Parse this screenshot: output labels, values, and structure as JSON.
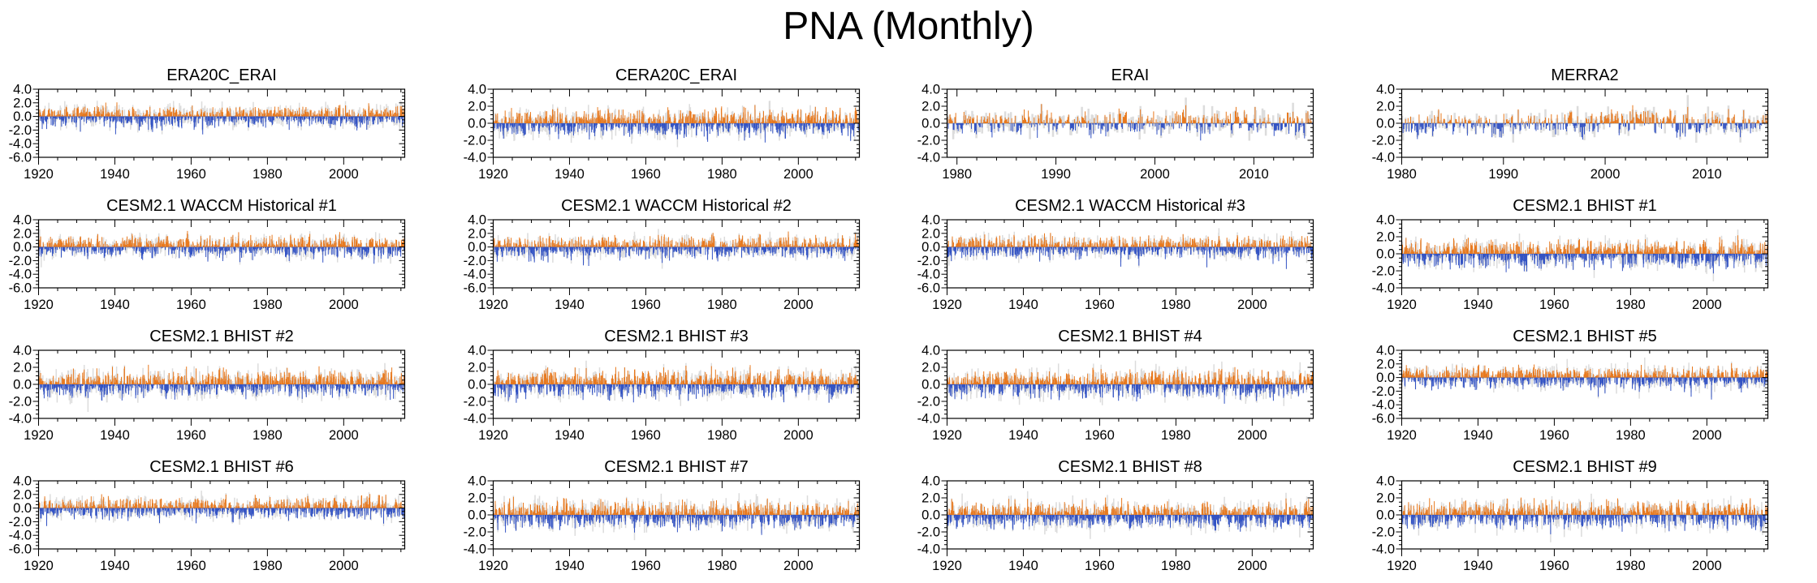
{
  "title": "PNA (Monthly)",
  "layout": {
    "rows": 4,
    "cols": 4,
    "grid_on": false,
    "legend": "none"
  },
  "colors": {
    "positive": "#e8791e",
    "negative": "#3353c4",
    "shadow": "#dcdcdc",
    "zero_line": "#9a9a9a",
    "axis": "#000000",
    "background": "#ffffff"
  },
  "series_legend": [
    {
      "name": "positive-anomaly-bars",
      "color_key": "positive"
    },
    {
      "name": "negative-anomaly-bars",
      "color_key": "negative"
    },
    {
      "name": "background-shadow-bars",
      "color_key": "shadow"
    }
  ],
  "chart_data": [
    {
      "type": "bar",
      "title": "ERA20C_ERAI",
      "xlim": [
        1920,
        2016
      ],
      "xticks": [
        1920,
        1940,
        1960,
        1980,
        2000
      ],
      "xtick_labels": [
        "1920",
        "1940",
        "1960",
        "1980",
        "2000"
      ],
      "xminor_step": 5,
      "ylim": [
        -6,
        4
      ],
      "yticks": [
        4,
        2,
        0,
        -2,
        -4,
        -6
      ],
      "ytick_labels": [
        "4.0",
        "2.0",
        "0.0",
        "-2.0",
        "-4.0",
        "-6.0"
      ],
      "yminor_step": 0.5,
      "seed": 3
    },
    {
      "type": "bar",
      "title": "CERA20C_ERAI",
      "xlim": [
        1920,
        2016
      ],
      "xticks": [
        1920,
        1940,
        1960,
        1980,
        2000
      ],
      "xtick_labels": [
        "1920",
        "1940",
        "1960",
        "1980",
        "2000"
      ],
      "xminor_step": 5,
      "ylim": [
        -4,
        4
      ],
      "yticks": [
        4,
        2,
        0,
        -2,
        -4
      ],
      "ytick_labels": [
        "4.0",
        "2.0",
        "0.0",
        "-2.0",
        "-4.0"
      ],
      "yminor_step": 0.5,
      "seed": 7
    },
    {
      "type": "bar",
      "title": "ERAI",
      "xlim": [
        1979,
        2016
      ],
      "xticks": [
        1980,
        1990,
        2000,
        2010
      ],
      "xtick_labels": [
        "1980",
        "1990",
        "2000",
        "2010"
      ],
      "xminor_step": 2,
      "ylim": [
        -4,
        4
      ],
      "yticks": [
        4,
        2,
        0,
        -2,
        -4
      ],
      "ytick_labels": [
        "4.0",
        "2.0",
        "0.0",
        "-2.0",
        "-4.0"
      ],
      "yminor_step": 0.5,
      "seed": 11
    },
    {
      "type": "bar",
      "title": "MERRA2",
      "xlim": [
        1980,
        2016
      ],
      "xticks": [
        1980,
        1990,
        2000,
        2010
      ],
      "xtick_labels": [
        "1980",
        "1990",
        "2000",
        "2010"
      ],
      "xminor_step": 2,
      "ylim": [
        -4,
        4
      ],
      "yticks": [
        4,
        2,
        0,
        -2,
        -4
      ],
      "ytick_labels": [
        "4.0",
        "2.0",
        "0.0",
        "-2.0",
        "-4.0"
      ],
      "yminor_step": 0.5,
      "seed": 15
    },
    {
      "type": "bar",
      "title": "CESM2.1 WACCM Historical #1",
      "xlim": [
        1920,
        2016
      ],
      "xticks": [
        1920,
        1940,
        1960,
        1980,
        2000
      ],
      "xtick_labels": [
        "1920",
        "1940",
        "1960",
        "1980",
        "2000"
      ],
      "xminor_step": 5,
      "ylim": [
        -6,
        4
      ],
      "yticks": [
        4,
        2,
        0,
        -2,
        -4,
        -6
      ],
      "ytick_labels": [
        "4.0",
        "2.0",
        "0.0",
        "-2.0",
        "-4.0",
        "-6.0"
      ],
      "yminor_step": 0.5,
      "seed": 21
    },
    {
      "type": "bar",
      "title": "CESM2.1 WACCM Historical #2",
      "xlim": [
        1920,
        2016
      ],
      "xticks": [
        1920,
        1940,
        1960,
        1980,
        2000
      ],
      "xtick_labels": [
        "1920",
        "1940",
        "1960",
        "1980",
        "2000"
      ],
      "xminor_step": 5,
      "ylim": [
        -6,
        4
      ],
      "yticks": [
        4,
        2,
        0,
        -2,
        -4,
        -6
      ],
      "ytick_labels": [
        "4.0",
        "2.0",
        "0.0",
        "-2.0",
        "-4.0",
        "-6.0"
      ],
      "yminor_step": 0.5,
      "seed": 25
    },
    {
      "type": "bar",
      "title": "CESM2.1 WACCM Historical #3",
      "xlim": [
        1920,
        2016
      ],
      "xticks": [
        1920,
        1940,
        1960,
        1980,
        2000
      ],
      "xtick_labels": [
        "1920",
        "1940",
        "1960",
        "1980",
        "2000"
      ],
      "xminor_step": 5,
      "ylim": [
        -6,
        4
      ],
      "yticks": [
        4,
        2,
        0,
        -2,
        -4,
        -6
      ],
      "ytick_labels": [
        "4.0",
        "2.0",
        "0.0",
        "-2.0",
        "-4.0",
        "-6.0"
      ],
      "yminor_step": 0.5,
      "seed": 29
    },
    {
      "type": "bar",
      "title": "CESM2.1 BHIST #1",
      "xlim": [
        1920,
        2016
      ],
      "xticks": [
        1920,
        1940,
        1960,
        1980,
        2000
      ],
      "xtick_labels": [
        "1920",
        "1940",
        "1960",
        "1980",
        "2000"
      ],
      "xminor_step": 5,
      "ylim": [
        -4,
        4
      ],
      "yticks": [
        4,
        2,
        0,
        -2,
        -4
      ],
      "ytick_labels": [
        "4.0",
        "2.0",
        "0.0",
        "-2.0",
        "-4.0"
      ],
      "yminor_step": 0.5,
      "seed": 33
    },
    {
      "type": "bar",
      "title": "CESM2.1 BHIST #2",
      "xlim": [
        1920,
        2016
      ],
      "xticks": [
        1920,
        1940,
        1960,
        1980,
        2000
      ],
      "xtick_labels": [
        "1920",
        "1940",
        "1960",
        "1980",
        "2000"
      ],
      "xminor_step": 5,
      "ylim": [
        -4,
        4
      ],
      "yticks": [
        4,
        2,
        0,
        -2,
        -4
      ],
      "ytick_labels": [
        "4.0",
        "2.0",
        "0.0",
        "-2.0",
        "-4.0"
      ],
      "yminor_step": 0.5,
      "seed": 41
    },
    {
      "type": "bar",
      "title": "CESM2.1 BHIST #3",
      "xlim": [
        1920,
        2016
      ],
      "xticks": [
        1920,
        1940,
        1960,
        1980,
        2000
      ],
      "xtick_labels": [
        "1920",
        "1940",
        "1960",
        "1980",
        "2000"
      ],
      "xminor_step": 5,
      "ylim": [
        -4,
        4
      ],
      "yticks": [
        4,
        2,
        0,
        -2,
        -4
      ],
      "ytick_labels": [
        "4.0",
        "2.0",
        "0.0",
        "-2.0",
        "-4.0"
      ],
      "yminor_step": 0.5,
      "seed": 45
    },
    {
      "type": "bar",
      "title": "CESM2.1 BHIST #4",
      "xlim": [
        1920,
        2016
      ],
      "xticks": [
        1920,
        1940,
        1960,
        1980,
        2000
      ],
      "xtick_labels": [
        "1920",
        "1940",
        "1960",
        "1980",
        "2000"
      ],
      "xminor_step": 5,
      "ylim": [
        -4,
        4
      ],
      "yticks": [
        4,
        2,
        0,
        -2,
        -4
      ],
      "ytick_labels": [
        "4.0",
        "2.0",
        "0.0",
        "-2.0",
        "-4.0"
      ],
      "yminor_step": 0.5,
      "seed": 49
    },
    {
      "type": "bar",
      "title": "CESM2.1 BHIST #5",
      "xlim": [
        1920,
        2016
      ],
      "xticks": [
        1920,
        1940,
        1960,
        1980,
        2000
      ],
      "xtick_labels": [
        "1920",
        "1940",
        "1960",
        "1980",
        "2000"
      ],
      "xminor_step": 5,
      "ylim": [
        -6,
        4
      ],
      "yticks": [
        4,
        2,
        0,
        -2,
        -4,
        -6
      ],
      "ytick_labels": [
        "4.0",
        "2.0",
        "0.0",
        "-2.0",
        "-4.0",
        "-6.0"
      ],
      "yminor_step": 0.5,
      "seed": 53
    },
    {
      "type": "bar",
      "title": "CESM2.1 BHIST #6",
      "xlim": [
        1920,
        2016
      ],
      "xticks": [
        1920,
        1940,
        1960,
        1980,
        2000
      ],
      "xtick_labels": [
        "1920",
        "1940",
        "1960",
        "1980",
        "2000"
      ],
      "xminor_step": 5,
      "ylim": [
        -6,
        4
      ],
      "yticks": [
        4,
        2,
        0,
        -2,
        -4,
        -6
      ],
      "ytick_labels": [
        "4.0",
        "2.0",
        "0.0",
        "-2.0",
        "-4.0",
        "-6.0"
      ],
      "yminor_step": 0.5,
      "seed": 61
    },
    {
      "type": "bar",
      "title": "CESM2.1 BHIST #7",
      "xlim": [
        1920,
        2016
      ],
      "xticks": [
        1920,
        1940,
        1960,
        1980,
        2000
      ],
      "xtick_labels": [
        "1920",
        "1940",
        "1960",
        "1980",
        "2000"
      ],
      "xminor_step": 5,
      "ylim": [
        -4,
        4
      ],
      "yticks": [
        4,
        2,
        0,
        -2,
        -4
      ],
      "ytick_labels": [
        "4.0",
        "2.0",
        "0.0",
        "-2.0",
        "-4.0"
      ],
      "yminor_step": 0.5,
      "seed": 65
    },
    {
      "type": "bar",
      "title": "CESM2.1 BHIST #8",
      "xlim": [
        1920,
        2016
      ],
      "xticks": [
        1920,
        1940,
        1960,
        1980,
        2000
      ],
      "xtick_labels": [
        "1920",
        "1940",
        "1960",
        "1980",
        "2000"
      ],
      "xminor_step": 5,
      "ylim": [
        -4,
        4
      ],
      "yticks": [
        4,
        2,
        0,
        -2,
        -4
      ],
      "ytick_labels": [
        "4.0",
        "2.0",
        "0.0",
        "-2.0",
        "-4.0"
      ],
      "yminor_step": 0.5,
      "seed": 69
    },
    {
      "type": "bar",
      "title": "CESM2.1 BHIST #9",
      "xlim": [
        1920,
        2016
      ],
      "xticks": [
        1920,
        1940,
        1960,
        1980,
        2000
      ],
      "xtick_labels": [
        "1920",
        "1940",
        "1960",
        "1980",
        "2000"
      ],
      "xminor_step": 5,
      "ylim": [
        -4,
        4
      ],
      "yticks": [
        4,
        2,
        0,
        -2,
        -4
      ],
      "ytick_labels": [
        "4.0",
        "2.0",
        "0.0",
        "-2.0",
        "-4.0"
      ],
      "yminor_step": 0.5,
      "seed": 73
    }
  ]
}
